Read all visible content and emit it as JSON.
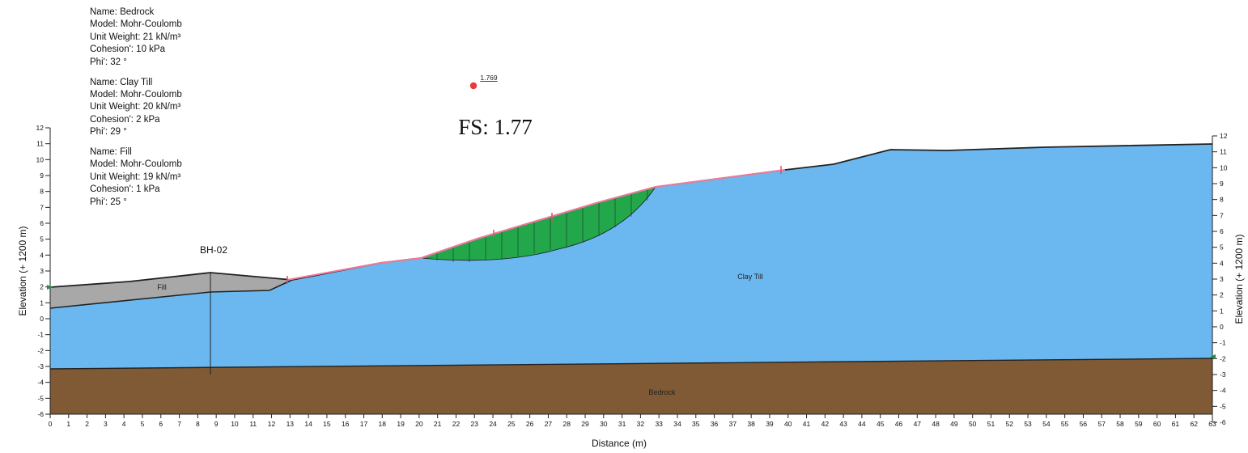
{
  "materials": [
    {
      "name_line": "Name: Bedrock",
      "model_line": "Model: Mohr-Coulomb",
      "unit_weight_line": "Unit Weight: 21 kN/m³",
      "cohesion_line": "Cohesion': 10 kPa",
      "phi_line": "Phi': 32 °"
    },
    {
      "name_line": "Name: Clay Till",
      "model_line": "Model: Mohr-Coulomb",
      "unit_weight_line": "Unit Weight: 20 kN/m³",
      "cohesion_line": "Cohesion': 2 kPa",
      "phi_line": "Phi': 29 °"
    },
    {
      "name_line": "Name: Fill",
      "model_line": "Model: Mohr-Coulomb",
      "unit_weight_line": "Unit Weight: 19 kN/m³",
      "cohesion_line": "Cohesion': 1 kPa",
      "phi_line": "Phi': 25 °"
    }
  ],
  "fs_label": "FS: 1.77",
  "slip_center_label": "1.769",
  "borehole_label": "BH-02",
  "region_labels": {
    "fill": "Fill",
    "clay_till": "Clay Till",
    "bedrock": "Bedrock"
  },
  "axes": {
    "xlabel": "Distance (m)",
    "ylabel_left": "Elevation (+ 1200 m)",
    "ylabel_right": "Elevation (+ 1200 m)",
    "x_ticks": [
      0,
      1,
      2,
      3,
      4,
      5,
      6,
      7,
      8,
      9,
      10,
      11,
      12,
      13,
      14,
      15,
      16,
      17,
      18,
      19,
      20,
      21,
      22,
      23,
      24,
      25,
      26,
      27,
      28,
      29,
      30,
      31,
      32,
      33,
      34,
      35,
      36,
      37,
      38,
      39,
      40,
      41,
      42,
      43,
      44,
      45,
      46,
      47,
      48,
      49,
      50,
      51,
      52,
      53,
      54,
      55,
      56,
      57,
      58,
      59,
      60,
      61,
      62,
      63
    ],
    "y_ticks_left": [
      12,
      11,
      10,
      9,
      8,
      7,
      6,
      5,
      4,
      3,
      2,
      1,
      0,
      -1,
      -2,
      -3,
      -4,
      -5,
      -6
    ],
    "y_ticks_right": [
      12,
      11,
      10,
      9,
      8,
      7,
      6,
      5,
      4,
      3,
      2,
      1,
      0,
      -1,
      -2,
      -3,
      -4,
      -5,
      -6
    ]
  },
  "colors": {
    "clay_till": "#6bb8f0",
    "bedrock": "#7f5a35",
    "fill": "#a8a8a8",
    "slip_mass": "#22a84a",
    "slip_surface_line": "#f07a9a",
    "center_point": "#e83a3a",
    "boundary": "#222222"
  }
}
